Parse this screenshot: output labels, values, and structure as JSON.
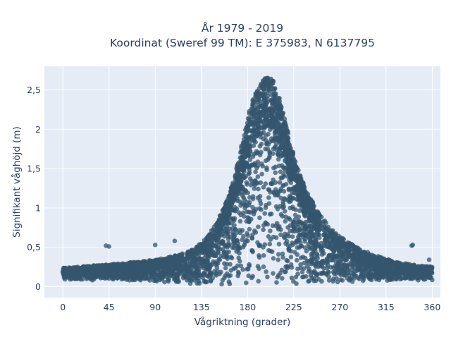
{
  "chart_data": {
    "type": "scatter",
    "title_line1": "År 1979 - 2019",
    "title_line2": "Koordinat (Sweref 99 TM): E 375983, N 6137795",
    "xlabel": "Vågriktning (grader)",
    "ylabel": "Signifikant våghöjd (m)",
    "xlim": [
      -18,
      368
    ],
    "ylim": [
      -0.14,
      2.8
    ],
    "x_ticks": [
      0,
      45,
      90,
      135,
      180,
      225,
      270,
      315,
      360
    ],
    "x_tick_labels": [
      "0",
      "45",
      "90",
      "135",
      "180",
      "225",
      "270",
      "315",
      "360"
    ],
    "y_ticks": [
      0,
      0.5,
      1,
      1.5,
      2,
      2.5
    ],
    "y_tick_labels": [
      "0",
      "0,5",
      "1",
      "1,5",
      "2",
      "2,5"
    ],
    "grid": true,
    "marker_color": "#34566e",
    "plot_bg": "#e5ecf6",
    "envelope": {
      "x": [
        0,
        15,
        30,
        45,
        60,
        75,
        90,
        105,
        120,
        130,
        140,
        150,
        160,
        165,
        170,
        175,
        180,
        185,
        190,
        195,
        200,
        205,
        210,
        215,
        220,
        225,
        230,
        240,
        250,
        260,
        270,
        280,
        290,
        300,
        315,
        330,
        345,
        360
      ],
      "y_max": [
        0.24,
        0.25,
        0.27,
        0.28,
        0.3,
        0.32,
        0.34,
        0.38,
        0.43,
        0.5,
        0.62,
        0.82,
        1.1,
        1.3,
        1.55,
        1.85,
        2.15,
        2.38,
        2.52,
        2.62,
        2.68,
        2.62,
        2.45,
        2.2,
        1.92,
        1.68,
        1.46,
        1.15,
        0.92,
        0.76,
        0.64,
        0.55,
        0.48,
        0.42,
        0.35,
        0.3,
        0.27,
        0.25
      ],
      "y_min": [
        0.08,
        0.08,
        0.08,
        0.08,
        0.07,
        0.07,
        0.06,
        0.05,
        0.04,
        0.03,
        0.02,
        0.02,
        0.02,
        0.02,
        0.02,
        0.02,
        0.02,
        0.02,
        0.02,
        0.02,
        0.02,
        0.02,
        0.02,
        0.02,
        0.02,
        0.02,
        0.02,
        0.03,
        0.03,
        0.04,
        0.05,
        0.06,
        0.06,
        0.07,
        0.07,
        0.08,
        0.08,
        0.08
      ]
    },
    "outliers": [
      {
        "x": 42,
        "y": 0.52
      },
      {
        "x": 45,
        "y": 0.51
      },
      {
        "x": 90,
        "y": 0.53
      },
      {
        "x": 109,
        "y": 0.58
      },
      {
        "x": 340,
        "y": 0.52
      },
      {
        "x": 341,
        "y": 0.53
      },
      {
        "x": 357,
        "y": 0.34
      }
    ]
  }
}
